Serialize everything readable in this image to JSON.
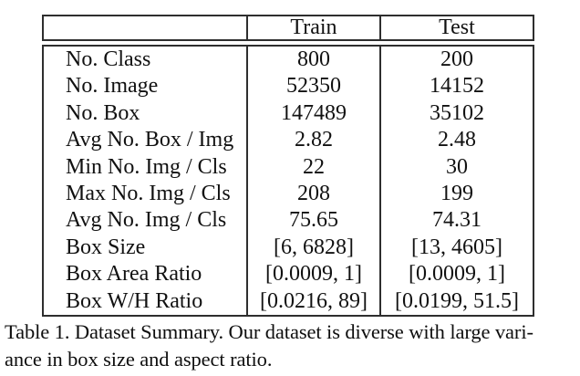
{
  "table": {
    "columns": [
      "",
      "Train",
      "Test"
    ],
    "rows": [
      {
        "label": "No. Class",
        "train": "800",
        "test": "200"
      },
      {
        "label": "No. Image",
        "train": "52350",
        "test": "14152"
      },
      {
        "label": "No. Box",
        "train": "147489",
        "test": "35102"
      },
      {
        "label": "Avg No. Box / Img",
        "train": "2.82",
        "test": "2.48"
      },
      {
        "label": "Min No. Img / Cls",
        "train": "22",
        "test": "30"
      },
      {
        "label": "Max No. Img / Cls",
        "train": "208",
        "test": "199"
      },
      {
        "label": "Avg No. Img / Cls",
        "train": "75.65",
        "test": "74.31"
      },
      {
        "label": "Box Size",
        "train": "[6, 6828]",
        "test": "[13, 4605]"
      },
      {
        "label": "Box Area Ratio",
        "train": "[0.0009, 1]",
        "test": "[0.0009, 1]"
      },
      {
        "label": "Box W/H Ratio",
        "train": "[0.0216, 89]",
        "test": "[0.0199, 51.5]"
      }
    ]
  },
  "caption": {
    "lines": [
      "Table 1. Dataset Summary.  Our dataset is diverse with large vari-",
      "ance in box size and aspect ratio."
    ]
  }
}
